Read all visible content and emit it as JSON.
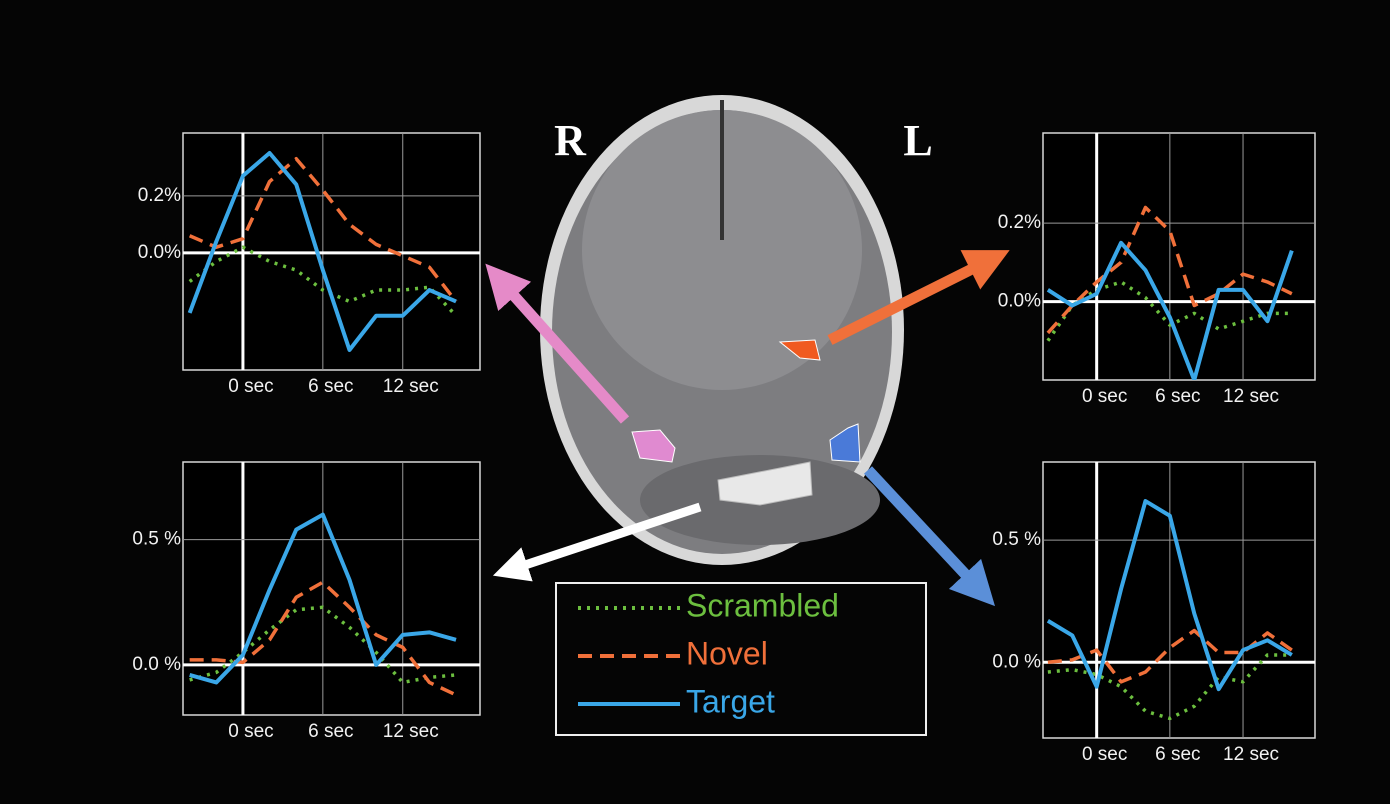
{
  "labels": [
    "R",
    "L"
  ],
  "chart_data": [
    {
      "type": "line",
      "x": [
        -4,
        -2,
        0,
        2,
        4,
        6,
        8,
        10,
        12,
        14,
        16
      ],
      "xlim": [
        -4.5,
        17.8
      ],
      "ylim": [
        -0.41,
        0.42
      ],
      "xticks": [
        {
          "value": 0,
          "label": "0 sec"
        },
        {
          "value": 6,
          "label": "6 sec"
        },
        {
          "value": 12,
          "label": "12 sec"
        }
      ],
      "yticks": [
        {
          "value": 0,
          "label": "0.0%"
        },
        {
          "value": 0.2,
          "label": "0.2%"
        }
      ],
      "grid": true,
      "series": [
        {
          "name": "Scrambled",
          "color": "#6cbf3f",
          "style": "dotted",
          "values": [
            -0.1,
            -0.03,
            0.02,
            -0.03,
            -0.06,
            -0.13,
            -0.17,
            -0.13,
            -0.13,
            -0.12,
            -0.22
          ]
        },
        {
          "name": "Novel",
          "color": "#f0703a",
          "style": "dashed",
          "values": [
            0.06,
            0.02,
            0.05,
            0.25,
            0.33,
            0.22,
            0.1,
            0.03,
            -0.01,
            -0.05,
            -0.17
          ]
        },
        {
          "name": "Target",
          "color": "#3aa7e8",
          "style": "solid",
          "values": [
            -0.21,
            0.04,
            0.27,
            0.35,
            0.24,
            -0.06,
            -0.34,
            -0.22,
            -0.22,
            -0.13,
            -0.17
          ]
        }
      ]
    },
    {
      "type": "line",
      "x": [
        -4,
        -2,
        0,
        2,
        4,
        6,
        8,
        10,
        12,
        14,
        16
      ],
      "xlim": [
        -4.4,
        17.9
      ],
      "ylim": [
        -0.2,
        0.43
      ],
      "xticks": [
        {
          "value": 0,
          "label": "0 sec"
        },
        {
          "value": 6,
          "label": "6 sec"
        },
        {
          "value": 12,
          "label": "12 sec"
        }
      ],
      "yticks": [
        {
          "value": 0,
          "label": "0.0%"
        },
        {
          "value": 0.2,
          "label": "0.2%"
        }
      ],
      "grid": true,
      "series": [
        {
          "color": "#6cbf3f",
          "style": "dotted",
          "values": [
            -0.1,
            -0.01,
            0.03,
            0.05,
            0.01,
            -0.06,
            -0.03,
            -0.07,
            -0.05,
            -0.03,
            -0.03
          ]
        },
        {
          "color": "#f0703a",
          "style": "dashed",
          "values": [
            -0.08,
            -0.01,
            0.05,
            0.1,
            0.24,
            0.18,
            -0.01,
            0.02,
            0.07,
            0.05,
            0.02
          ]
        },
        {
          "color": "#3aa7e8",
          "style": "solid",
          "values": [
            0.03,
            -0.01,
            0.02,
            0.15,
            0.08,
            -0.04,
            -0.2,
            0.03,
            0.03,
            -0.05,
            0.13
          ]
        }
      ]
    },
    {
      "type": "line",
      "x": [
        -4,
        -2,
        0,
        2,
        4,
        6,
        8,
        10,
        12,
        14,
        16
      ],
      "xlim": [
        -4.5,
        17.8
      ],
      "ylim": [
        -0.2,
        0.81
      ],
      "xticks": [
        {
          "value": 0,
          "label": "0 sec"
        },
        {
          "value": 6,
          "label": "6 sec"
        },
        {
          "value": 12,
          "label": "12 sec"
        }
      ],
      "yticks": [
        {
          "value": 0,
          "label": "0.0 %"
        },
        {
          "value": 0.5,
          "label": "0.5 %"
        }
      ],
      "grid": true,
      "series": [
        {
          "color": "#6cbf3f",
          "style": "dotted",
          "values": [
            -0.06,
            -0.03,
            0.05,
            0.14,
            0.22,
            0.23,
            0.15,
            0.05,
            -0.07,
            -0.05,
            -0.04
          ]
        },
        {
          "color": "#f0703a",
          "style": "dashed",
          "values": [
            0.02,
            0.02,
            0.01,
            0.1,
            0.27,
            0.33,
            0.23,
            0.12,
            0.07,
            -0.07,
            -0.12
          ]
        },
        {
          "color": "#3aa7e8",
          "style": "solid",
          "values": [
            -0.04,
            -0.07,
            0.04,
            0.3,
            0.54,
            0.6,
            0.34,
            0.0,
            0.12,
            0.13,
            0.1
          ]
        }
      ]
    },
    {
      "type": "line",
      "x": [
        -4,
        -2,
        0,
        2,
        4,
        6,
        8,
        10,
        12,
        14,
        16
      ],
      "xlim": [
        -4.4,
        17.9
      ],
      "ylim": [
        -0.31,
        0.82
      ],
      "xticks": [
        {
          "value": 0,
          "label": "0 sec"
        },
        {
          "value": 6,
          "label": "6 sec"
        },
        {
          "value": 12,
          "label": "12 sec"
        }
      ],
      "yticks": [
        {
          "value": 0,
          "label": "0.0 %"
        },
        {
          "value": 0.5,
          "label": "0.5 %"
        }
      ],
      "grid": true,
      "series": [
        {
          "color": "#6cbf3f",
          "style": "dotted",
          "values": [
            -0.04,
            -0.03,
            -0.05,
            -0.1,
            -0.2,
            -0.23,
            -0.18,
            -0.06,
            -0.08,
            0.03,
            0.03
          ]
        },
        {
          "color": "#f0703a",
          "style": "dashed",
          "values": [
            0.0,
            0.01,
            0.05,
            -0.08,
            -0.04,
            0.06,
            0.13,
            0.04,
            0.04,
            0.12,
            0.05
          ]
        },
        {
          "color": "#3aa7e8",
          "style": "solid",
          "values": [
            0.17,
            0.11,
            -0.1,
            0.3,
            0.66,
            0.6,
            0.2,
            -0.11,
            0.05,
            0.09,
            0.03
          ]
        }
      ]
    }
  ]
}
